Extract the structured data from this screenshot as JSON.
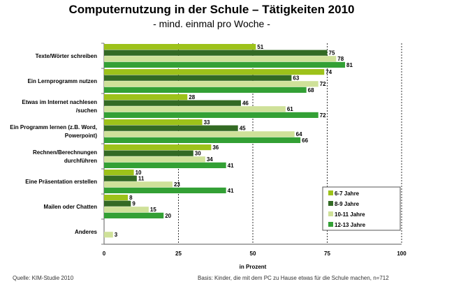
{
  "chart_data": {
    "type": "bar",
    "orientation": "horizontal",
    "title": "Computernutzung in der Schule – Tätigkeiten 2010",
    "subtitle": "- mind. einmal pro Woche -",
    "xlabel": "in Prozent",
    "xlim": [
      0,
      100
    ],
    "xticks": [
      "0",
      "25",
      "50",
      "75",
      "100"
    ],
    "grid": "vertical dotted",
    "legend_position": "bottom-right",
    "categories": [
      "Texte/Wörter schreiben",
      "Ein Lernprogramm nutzen",
      "Etwas im Internet nachlesen /suchen",
      "Ein Programm lernen (z.B. Word, Powerpoint)",
      "Rechnen/Berechnungen durchführen",
      "Eine Präsentation erstellen",
      "Mailen oder Chatten",
      "Anderes"
    ],
    "category_lines": [
      [
        "Texte/Wörter schreiben"
      ],
      [
        "Ein Lernprogramm nutzen"
      ],
      [
        "Etwas im Internet nachlesen",
        "/suchen"
      ],
      [
        "Ein Programm lernen (z.B. Word,",
        "Powerpoint)"
      ],
      [
        "Rechnen/Berechnungen",
        "durchführen"
      ],
      [
        "Eine Präsentation erstellen"
      ],
      [
        "Mailen oder Chatten"
      ],
      [
        "Anderes"
      ]
    ],
    "series": [
      {
        "name": "6-7 Jahre",
        "color": "#9dc21a",
        "values": [
          51,
          74,
          28,
          33,
          36,
          10,
          8,
          null
        ]
      },
      {
        "name": "8-9 Jahre",
        "color": "#336a24",
        "values": [
          75,
          63,
          46,
          45,
          30,
          11,
          9,
          null
        ]
      },
      {
        "name": "10-11 Jahre",
        "color": "#cfe199",
        "values": [
          78,
          72,
          61,
          64,
          34,
          23,
          15,
          3
        ]
      },
      {
        "name": "12-13 Jahre",
        "color": "#33a035",
        "values": [
          81,
          68,
          72,
          66,
          41,
          41,
          20,
          null
        ]
      }
    ]
  },
  "footer": {
    "source": "Quelle: KIM-Studie 2010",
    "basis": "Basis: Kinder, die mit dem PC zu Hause etwas für die Schule machen, n=712"
  }
}
